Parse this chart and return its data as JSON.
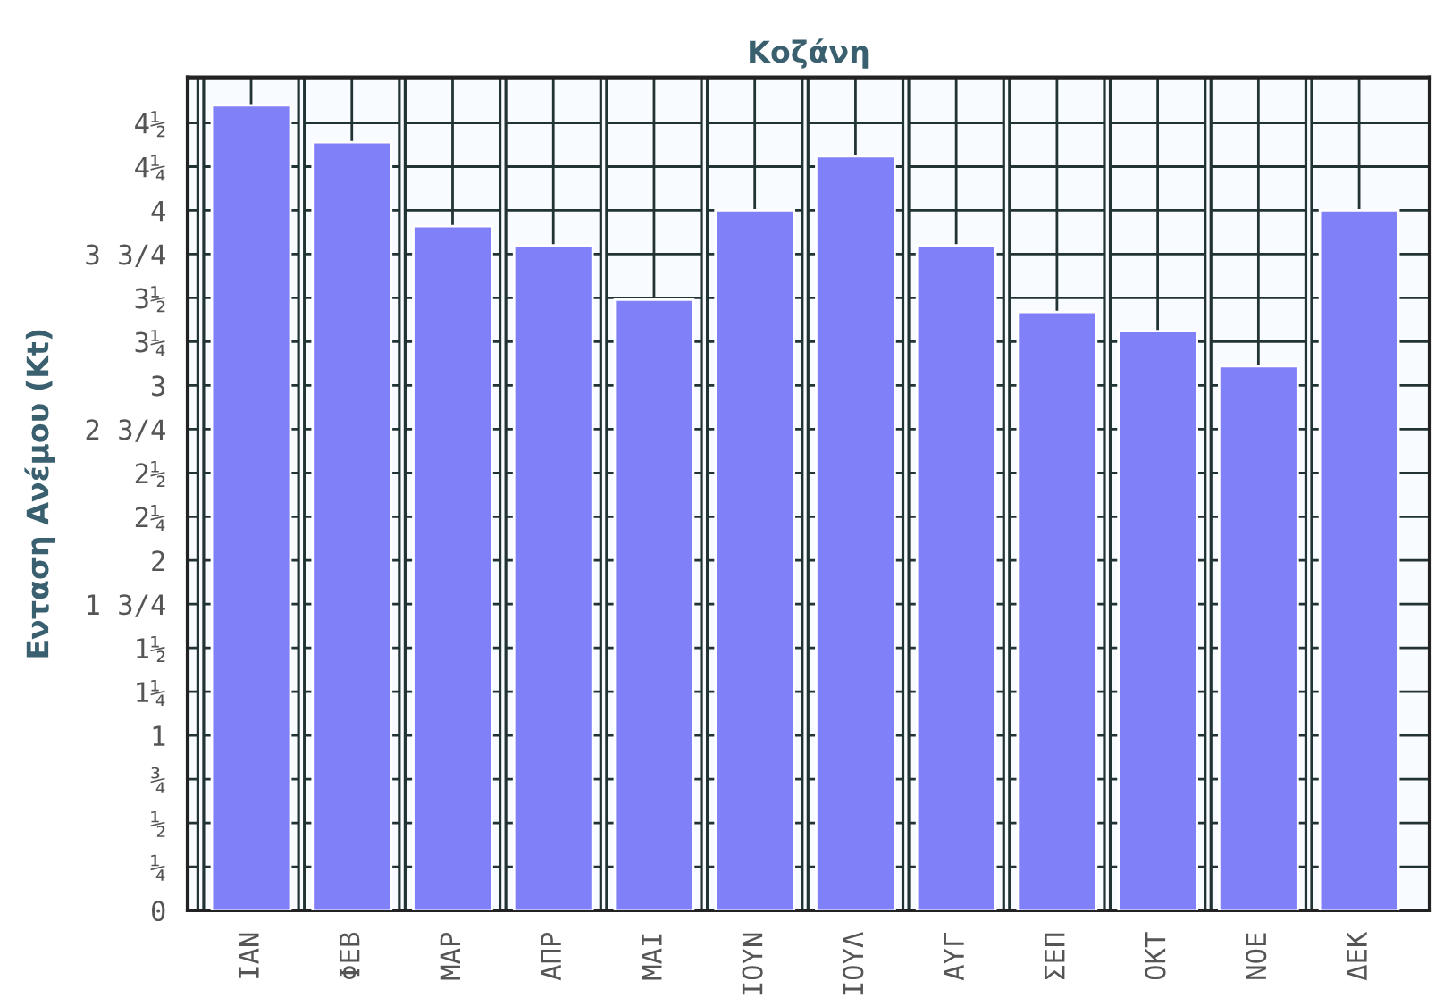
{
  "chart_data": {
    "type": "bar",
    "title": "Κοζάνη",
    "ylabel": "Ενταση Ανέμου (Kt)",
    "categories": [
      "ΙΑΝ",
      "ΦΕΒ",
      "ΜΑΡ",
      "ΑΠΡ",
      "ΜΑΙ",
      "ΙΟΥΝ",
      "ΙΟΥΛ",
      "ΑΥΓ",
      "ΣΕΠ",
      "ΟΚΤ",
      "ΝΟΕ",
      "ΔΕΚ"
    ],
    "values": [
      4.6,
      4.39,
      3.91,
      3.8,
      3.49,
      4.0,
      4.31,
      3.8,
      3.42,
      3.31,
      3.11,
      4.0
    ],
    "color": "#8080f8",
    "ylim": [
      0,
      4.76
    ],
    "yticks": [
      0,
      {
        "value": 0.25,
        "label": "¼"
      },
      {
        "value": 0.5,
        "label": "½"
      },
      {
        "value": 0.75,
        "label": "¾"
      },
      1,
      {
        "value": 1.25,
        "label": "1¼"
      },
      {
        "value": 1.5,
        "label": "1½"
      },
      {
        "value": 1.75,
        "label": "1 3/4"
      },
      2,
      {
        "value": 2.25,
        "label": "2¼"
      },
      {
        "value": 2.5,
        "label": "2½"
      },
      {
        "value": 2.75,
        "label": "2 3/4"
      },
      3,
      {
        "value": 3.25,
        "label": "3¼"
      },
      {
        "value": 3.5,
        "label": "3½"
      },
      {
        "value": 3.75,
        "label": "3 3/4"
      },
      4,
      {
        "value": 4.25,
        "label": "4¼"
      },
      {
        "value": 4.5,
        "label": "4½"
      }
    ],
    "grid": true
  }
}
